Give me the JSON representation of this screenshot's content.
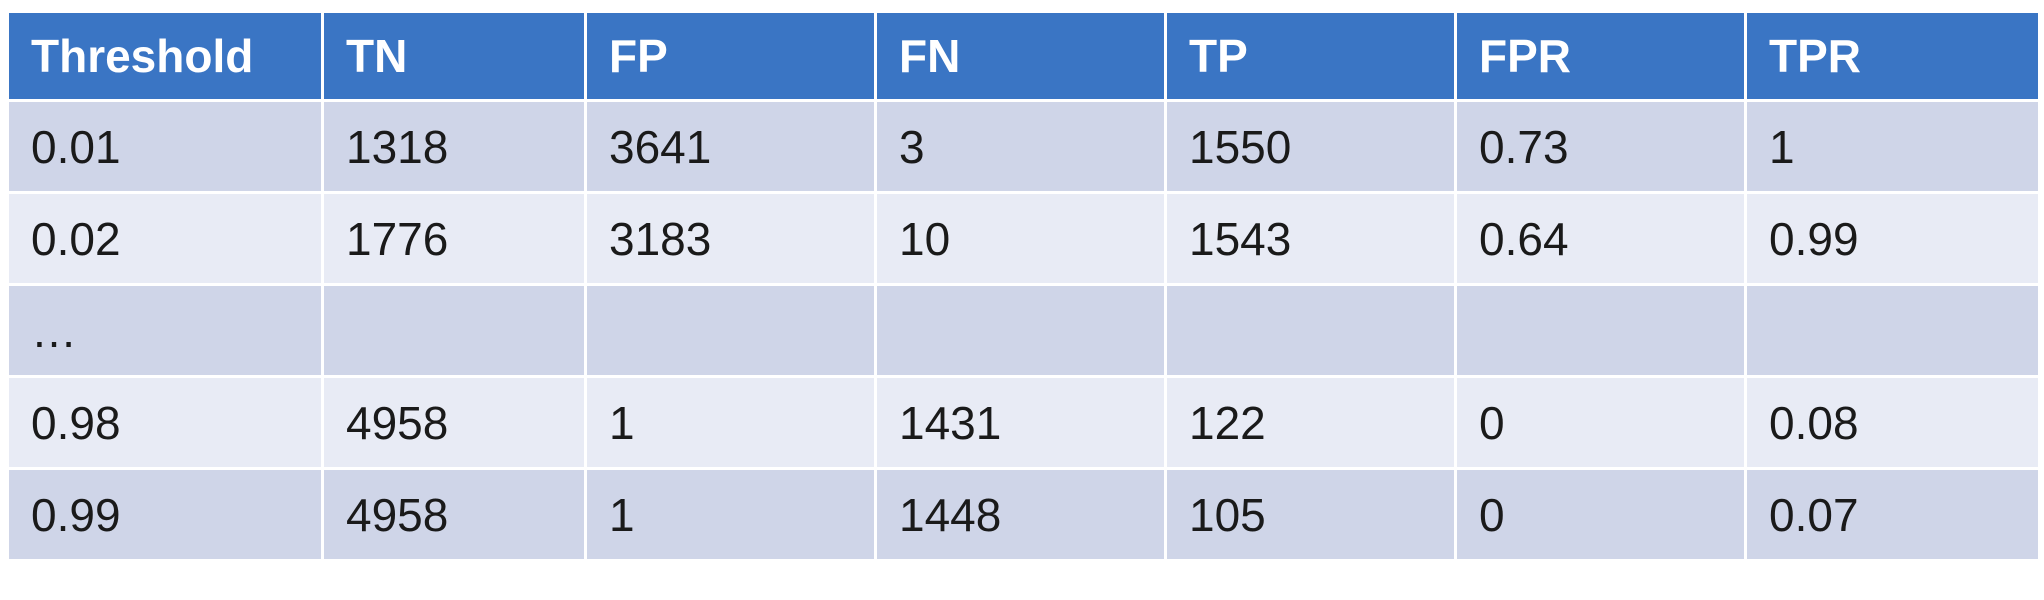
{
  "table": {
    "headers": [
      "Threshold",
      "TN",
      "FP",
      "FN",
      "TP",
      "FPR",
      "TPR"
    ],
    "rows": [
      [
        "0.01",
        "1318",
        "3641",
        "3",
        "1550",
        "0.73",
        "1"
      ],
      [
        "0.02",
        "1776",
        "3183",
        "10",
        "1543",
        "0.64",
        "0.99"
      ],
      [
        "…",
        "",
        "",
        "",
        "",
        "",
        ""
      ],
      [
        "0.98",
        "4958",
        "1",
        "1431",
        "122",
        "0",
        "0.08"
      ],
      [
        "0.99",
        "4958",
        "1",
        "1448",
        "105",
        "0",
        "0.07"
      ]
    ]
  },
  "colors": {
    "header_bg": "#3a75c4",
    "header_text": "#ffffff",
    "row_dark": "#cfd5e8",
    "row_light": "#e8ebf5",
    "border": "#ffffff"
  }
}
